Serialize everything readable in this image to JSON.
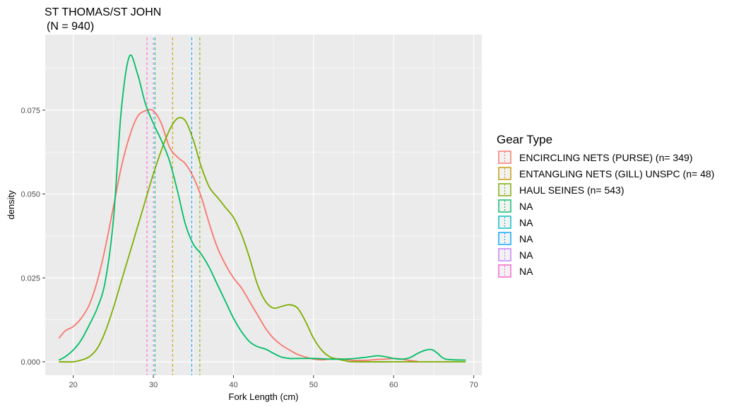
{
  "chart_data": {
    "type": "line",
    "title": "ST THOMAS/ST JOHN",
    "subtitle": "(N = 940)",
    "xlabel": "Fork Length (cm)",
    "ylabel": "density",
    "xlim": [
      16.5,
      71
    ],
    "ylim": [
      -0.004,
      0.0975
    ],
    "x_ticks": [
      20,
      30,
      40,
      50,
      60,
      70
    ],
    "x_tick_labels": [
      "20",
      "30",
      "40",
      "50",
      "60",
      "70"
    ],
    "y_ticks": [
      0,
      0.025,
      0.05,
      0.075
    ],
    "y_tick_labels": [
      "0.000",
      "0.025",
      "0.050",
      "0.075"
    ],
    "grid": true,
    "legend_position": "right",
    "legend_title": "Gear Type",
    "series": [
      {
        "name": "ENCIRCLING NETS (PURSE) (n= 349)",
        "color": "#F8766D",
        "vline": 29.2,
        "points": [
          [
            18.2,
            0.007
          ],
          [
            19.0,
            0.0092
          ],
          [
            20.0,
            0.0105
          ],
          [
            21.0,
            0.013
          ],
          [
            22.0,
            0.017
          ],
          [
            23.0,
            0.024
          ],
          [
            24.0,
            0.034
          ],
          [
            25.0,
            0.046
          ],
          [
            26.0,
            0.058
          ],
          [
            27.0,
            0.067
          ],
          [
            28.0,
            0.073
          ],
          [
            29.0,
            0.0748
          ],
          [
            30.0,
            0.0748
          ],
          [
            31.0,
            0.071
          ],
          [
            32.0,
            0.064
          ],
          [
            33.0,
            0.061
          ],
          [
            34.0,
            0.059
          ],
          [
            35.0,
            0.055
          ],
          [
            36.0,
            0.049
          ],
          [
            37.0,
            0.041
          ],
          [
            38.0,
            0.034
          ],
          [
            39.0,
            0.029
          ],
          [
            40.0,
            0.025
          ],
          [
            41.0,
            0.022
          ],
          [
            42.0,
            0.018
          ],
          [
            43.0,
            0.014
          ],
          [
            44.0,
            0.01
          ],
          [
            45.0,
            0.007
          ],
          [
            46.0,
            0.005
          ],
          [
            47.0,
            0.0035
          ],
          [
            48.0,
            0.0022
          ],
          [
            49.0,
            0.0014
          ],
          [
            50.0,
            0.0008
          ],
          [
            51.0,
            0.0006
          ],
          [
            52.0,
            0.0008
          ],
          [
            53.0,
            0.0009
          ],
          [
            54.0,
            0.0007
          ],
          [
            55.0,
            0.0004
          ],
          [
            56.0,
            0.0004
          ],
          [
            57.0,
            0.0005
          ],
          [
            58.0,
            0.0007
          ],
          [
            59.0,
            0.0008
          ],
          [
            60.0,
            0.001
          ],
          [
            61.0,
            0.0008
          ],
          [
            62.0,
            0.0004
          ],
          [
            63.0,
            0.0001
          ]
        ]
      },
      {
        "name": "ENTANGLING NETS (GILL) UNSPC (n= 48)",
        "color": "#C49A00",
        "vline": 32.4,
        "points": []
      },
      {
        "name": "HAUL SEINES (n= 543)",
        "color": "#7CAE00",
        "vline": 35.8,
        "points": [
          [
            18.2,
            0.0
          ],
          [
            20.0,
            0.0
          ],
          [
            21.0,
            0.0005
          ],
          [
            22.0,
            0.0015
          ],
          [
            23.0,
            0.004
          ],
          [
            24.0,
            0.009
          ],
          [
            25.0,
            0.016
          ],
          [
            26.0,
            0.024
          ],
          [
            27.0,
            0.032
          ],
          [
            28.0,
            0.04
          ],
          [
            29.0,
            0.048
          ],
          [
            30.0,
            0.056
          ],
          [
            31.0,
            0.063
          ],
          [
            32.0,
            0.069
          ],
          [
            33.0,
            0.0725
          ],
          [
            34.0,
            0.0718
          ],
          [
            35.0,
            0.066
          ],
          [
            36.0,
            0.058
          ],
          [
            37.0,
            0.052
          ],
          [
            38.0,
            0.049
          ],
          [
            39.0,
            0.046
          ],
          [
            40.0,
            0.043
          ],
          [
            41.0,
            0.038
          ],
          [
            42.0,
            0.031
          ],
          [
            43.0,
            0.023
          ],
          [
            44.0,
            0.018
          ],
          [
            45.0,
            0.016
          ],
          [
            46.0,
            0.0165
          ],
          [
            47.0,
            0.017
          ],
          [
            48.0,
            0.016
          ],
          [
            49.0,
            0.012
          ],
          [
            50.0,
            0.007
          ],
          [
            51.0,
            0.0035
          ],
          [
            52.0,
            0.0015
          ],
          [
            53.0,
            0.0008
          ],
          [
            54.0,
            0.0003
          ],
          [
            55.0,
            0.0
          ],
          [
            60.0,
            0.0
          ],
          [
            65.0,
            0.0
          ],
          [
            69.0,
            0.0
          ]
        ]
      },
      {
        "name": "NA",
        "color": "#00BE67",
        "vline": 30.2,
        "points": [
          [
            18.2,
            0.0005
          ],
          [
            19.0,
            0.0015
          ],
          [
            20.0,
            0.0035
          ],
          [
            21.0,
            0.0065
          ],
          [
            22.0,
            0.011
          ],
          [
            23.0,
            0.016
          ],
          [
            24.0,
            0.024
          ],
          [
            25.0,
            0.042
          ],
          [
            26.0,
            0.075
          ],
          [
            27.0,
            0.091
          ],
          [
            28.0,
            0.086
          ],
          [
            29.0,
            0.077
          ],
          [
            30.0,
            0.071
          ],
          [
            31.0,
            0.066
          ],
          [
            32.0,
            0.06
          ],
          [
            33.0,
            0.051
          ],
          [
            34.0,
            0.041
          ],
          [
            35.0,
            0.035
          ],
          [
            36.0,
            0.032
          ],
          [
            37.0,
            0.028
          ],
          [
            38.0,
            0.023
          ],
          [
            39.0,
            0.018
          ],
          [
            40.0,
            0.013
          ],
          [
            41.0,
            0.009
          ],
          [
            42.0,
            0.006
          ],
          [
            43.0,
            0.0045
          ],
          [
            44.0,
            0.0038
          ],
          [
            45.0,
            0.0025
          ],
          [
            46.0,
            0.0014
          ],
          [
            47.0,
            0.001
          ],
          [
            48.0,
            0.001
          ],
          [
            50.0,
            0.001
          ],
          [
            52.0,
            0.0008
          ],
          [
            54.0,
            0.0008
          ],
          [
            56.0,
            0.0012
          ],
          [
            57.0,
            0.0015
          ],
          [
            58.0,
            0.0018
          ],
          [
            59.0,
            0.0015
          ],
          [
            60.0,
            0.001
          ],
          [
            61.0,
            0.0008
          ],
          [
            62.0,
            0.0012
          ],
          [
            63.0,
            0.0025
          ],
          [
            64.0,
            0.0035
          ],
          [
            64.8,
            0.0036
          ],
          [
            65.5,
            0.0025
          ],
          [
            66.5,
            0.0008
          ],
          [
            69.0,
            0.0005
          ]
        ]
      },
      {
        "name": "NA",
        "color": "#00BFC4",
        "vline": null,
        "points": []
      },
      {
        "name": "NA",
        "color": "#00A9FF",
        "vline": 34.8,
        "points": []
      },
      {
        "name": "NA",
        "color": "#C77CFF",
        "vline": 30.0,
        "points": []
      },
      {
        "name": "NA",
        "color": "#FF61CC",
        "vline": 29.2,
        "points": []
      }
    ]
  }
}
